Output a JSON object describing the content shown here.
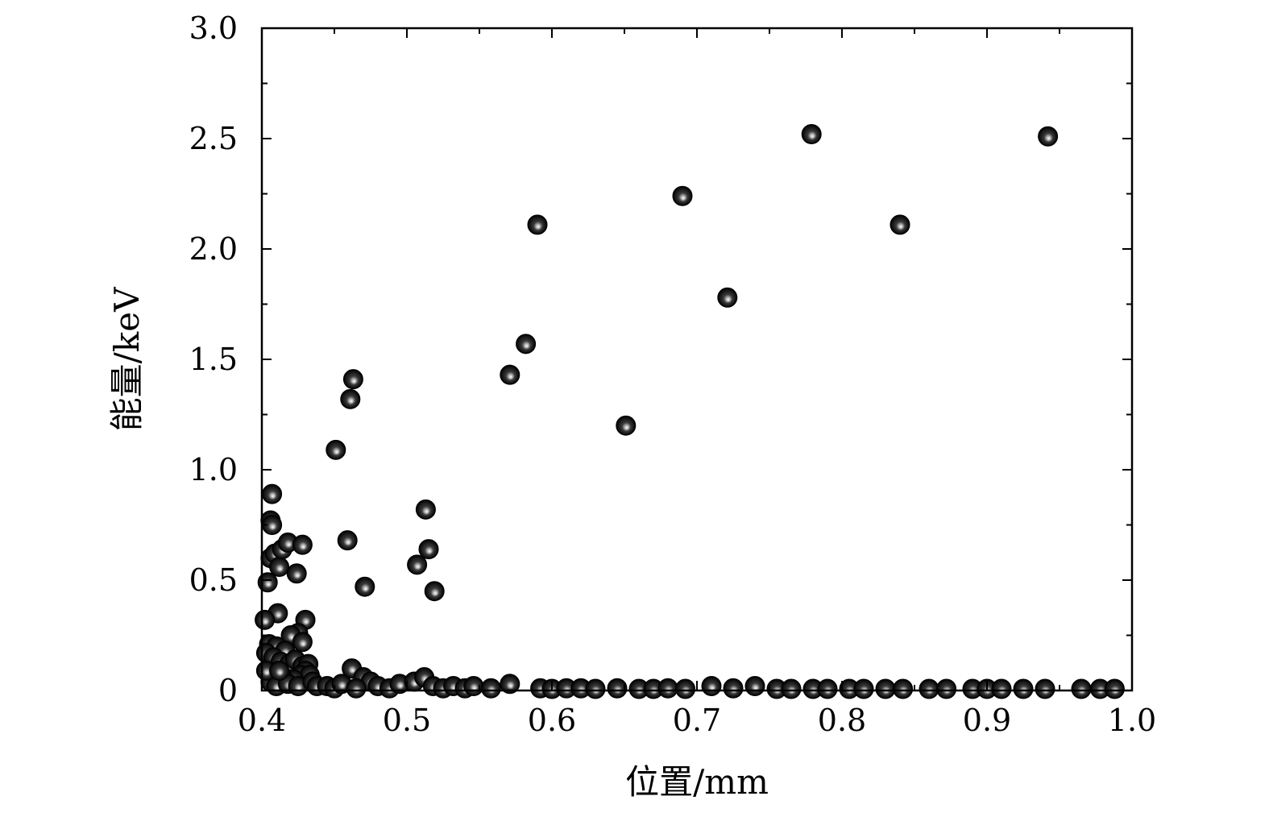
{
  "chart_data": {
    "type": "scatter",
    "title": "",
    "xlabel": "位置/mm",
    "ylabel": "能量/keV",
    "xlim": [
      0.4,
      1.0
    ],
    "ylim": [
      0,
      3.0
    ],
    "grid": false,
    "x_ticks": [
      "0.4",
      "0.5",
      "0.6",
      "0.7",
      "0.8",
      "0.9",
      "1.0"
    ],
    "y_ticks": [
      "0",
      "0.5",
      "1.0",
      "1.5",
      "2.0",
      "2.5",
      "3.0"
    ],
    "colors": {
      "marker": "#000000",
      "highlight": "#ffffff",
      "axis": "#000000"
    },
    "series": [
      {
        "points": [
          [
            0.407,
            0.89
          ],
          [
            0.406,
            0.77
          ],
          [
            0.407,
            0.75
          ],
          [
            0.404,
            0.49
          ],
          [
            0.406,
            0.6
          ],
          [
            0.409,
            0.62
          ],
          [
            0.412,
            0.56
          ],
          [
            0.414,
            0.64
          ],
          [
            0.418,
            0.67
          ],
          [
            0.424,
            0.53
          ],
          [
            0.428,
            0.66
          ],
          [
            0.411,
            0.35
          ],
          [
            0.402,
            0.32
          ],
          [
            0.43,
            0.32
          ],
          [
            0.425,
            0.26
          ],
          [
            0.42,
            0.25
          ],
          [
            0.428,
            0.22
          ],
          [
            0.405,
            0.21
          ],
          [
            0.41,
            0.2
          ],
          [
            0.416,
            0.18
          ],
          [
            0.403,
            0.17
          ],
          [
            0.408,
            0.15
          ],
          [
            0.413,
            0.13
          ],
          [
            0.419,
            0.12
          ],
          [
            0.423,
            0.14
          ],
          [
            0.428,
            0.11
          ],
          [
            0.432,
            0.12
          ],
          [
            0.43,
            0.09
          ],
          [
            0.427,
            0.07
          ],
          [
            0.433,
            0.07
          ],
          [
            0.422,
            0.05
          ],
          [
            0.414,
            0.06
          ],
          [
            0.406,
            0.04
          ],
          [
            0.41,
            0.02
          ],
          [
            0.418,
            0.03
          ],
          [
            0.425,
            0.02
          ],
          [
            0.435,
            0.04
          ],
          [
            0.438,
            0.02
          ],
          [
            0.403,
            0.09
          ],
          [
            0.412,
            0.09
          ],
          [
            0.451,
            1.09
          ],
          [
            0.461,
            1.32
          ],
          [
            0.463,
            1.41
          ],
          [
            0.459,
            0.68
          ],
          [
            0.471,
            0.47
          ],
          [
            0.462,
            0.1
          ],
          [
            0.47,
            0.06
          ],
          [
            0.475,
            0.04
          ],
          [
            0.445,
            0.02
          ],
          [
            0.45,
            0.01
          ],
          [
            0.455,
            0.03
          ],
          [
            0.465,
            0.01
          ],
          [
            0.48,
            0.02
          ],
          [
            0.488,
            0.01
          ],
          [
            0.495,
            0.03
          ],
          [
            0.505,
            0.04
          ],
          [
            0.512,
            0.06
          ],
          [
            0.507,
            0.57
          ],
          [
            0.513,
            0.82
          ],
          [
            0.515,
            0.64
          ],
          [
            0.519,
            0.45
          ],
          [
            0.518,
            0.02
          ],
          [
            0.525,
            0.01
          ],
          [
            0.532,
            0.02
          ],
          [
            0.54,
            0.01
          ],
          [
            0.546,
            0.02
          ],
          [
            0.558,
            0.01
          ],
          [
            0.571,
            0.03
          ],
          [
            0.571,
            1.43
          ],
          [
            0.582,
            1.57
          ],
          [
            0.59,
            2.11
          ],
          [
            0.592,
            0.01
          ],
          [
            0.6,
            0.0
          ],
          [
            0.61,
            0.01
          ],
          [
            0.62,
            0.01
          ],
          [
            0.63,
            0.0
          ],
          [
            0.645,
            0.01
          ],
          [
            0.651,
            1.2
          ],
          [
            0.66,
            0.0
          ],
          [
            0.67,
            0.0
          ],
          [
            0.68,
            0.01
          ],
          [
            0.69,
            2.24
          ],
          [
            0.692,
            0.0
          ],
          [
            0.71,
            0.02
          ],
          [
            0.721,
            1.78
          ],
          [
            0.725,
            0.01
          ],
          [
            0.74,
            0.02
          ],
          [
            0.755,
            0.0
          ],
          [
            0.765,
            0.0
          ],
          [
            0.779,
            2.52
          ],
          [
            0.78,
            0.0
          ],
          [
            0.79,
            0.0
          ],
          [
            0.805,
            0.0
          ],
          [
            0.815,
            0.0
          ],
          [
            0.83,
            0.0
          ],
          [
            0.84,
            2.11
          ],
          [
            0.842,
            0.0
          ],
          [
            0.86,
            0.0
          ],
          [
            0.872,
            0.0
          ],
          [
            0.89,
            0.0
          ],
          [
            0.9,
            0.0
          ],
          [
            0.91,
            0.0
          ],
          [
            0.925,
            0.0
          ],
          [
            0.94,
            0.0
          ],
          [
            0.942,
            2.51
          ],
          [
            0.965,
            0.0
          ],
          [
            0.978,
            0.0
          ],
          [
            0.988,
            0.0
          ]
        ]
      }
    ]
  }
}
